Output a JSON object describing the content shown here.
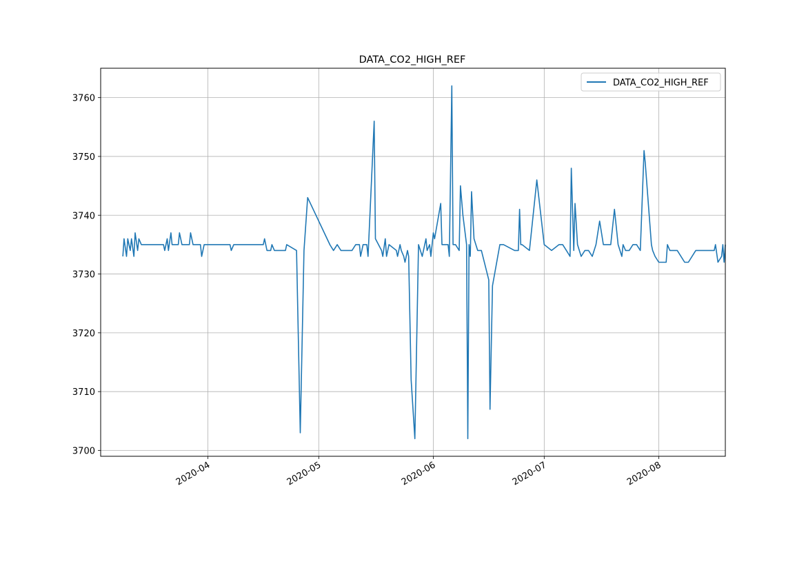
{
  "chart_data": {
    "type": "line",
    "title": "DATA_CO2_HIGH_REF",
    "xlabel": "",
    "ylabel": "",
    "x_axis_type": "date",
    "xlim": [
      "2020-03-03",
      "2020-08-19"
    ],
    "ylim": [
      3699,
      3765
    ],
    "x_ticks": [
      "2020-04",
      "2020-05",
      "2020-06",
      "2020-07",
      "2020-08"
    ],
    "y_ticks": [
      3700,
      3710,
      3720,
      3730,
      3740,
      3750,
      3760
    ],
    "grid": true,
    "legend_position": "top-right",
    "line_color": "#1f77b4",
    "series": [
      {
        "name": "DATA_CO2_HIGH_REF",
        "points": [
          [
            "2020-03-09",
            3733
          ],
          [
            "2020-03-09",
            3736
          ],
          [
            "2020-03-10",
            3733
          ],
          [
            "2020-03-10",
            3736
          ],
          [
            "2020-03-11",
            3734
          ],
          [
            "2020-03-11",
            3736
          ],
          [
            "2020-03-12",
            3733
          ],
          [
            "2020-03-12",
            3737
          ],
          [
            "2020-03-13",
            3734
          ],
          [
            "2020-03-13",
            3736
          ],
          [
            "2020-03-14",
            3735
          ],
          [
            "2020-03-20",
            3735
          ],
          [
            "2020-03-20",
            3734
          ],
          [
            "2020-03-21",
            3736
          ],
          [
            "2020-03-21",
            3734
          ],
          [
            "2020-03-22",
            3737
          ],
          [
            "2020-03-22",
            3735
          ],
          [
            "2020-03-24",
            3735
          ],
          [
            "2020-03-24",
            3737
          ],
          [
            "2020-03-25",
            3735
          ],
          [
            "2020-03-27",
            3735
          ],
          [
            "2020-03-27",
            3737
          ],
          [
            "2020-03-28",
            3735
          ],
          [
            "2020-03-30",
            3735
          ],
          [
            "2020-03-30",
            3733
          ],
          [
            "2020-03-31",
            3735
          ],
          [
            "2020-04-07",
            3735
          ],
          [
            "2020-04-07",
            3734
          ],
          [
            "2020-04-08",
            3735
          ],
          [
            "2020-04-16",
            3735
          ],
          [
            "2020-04-16",
            3736
          ],
          [
            "2020-04-17",
            3734
          ],
          [
            "2020-04-18",
            3734
          ],
          [
            "2020-04-18",
            3735
          ],
          [
            "2020-04-19",
            3734
          ],
          [
            "2020-04-22",
            3734
          ],
          [
            "2020-04-22",
            3735
          ],
          [
            "2020-04-25",
            3734
          ],
          [
            "2020-04-26",
            3703
          ],
          [
            "2020-04-27",
            3734
          ],
          [
            "2020-04-28",
            3743
          ],
          [
            "2020-05-04",
            3735
          ],
          [
            "2020-05-05",
            3734
          ],
          [
            "2020-05-06",
            3735
          ],
          [
            "2020-05-07",
            3734
          ],
          [
            "2020-05-10",
            3734
          ],
          [
            "2020-05-11",
            3735
          ],
          [
            "2020-05-12",
            3735
          ],
          [
            "2020-05-12",
            3733
          ],
          [
            "2020-05-13",
            3735
          ],
          [
            "2020-05-14",
            3735
          ],
          [
            "2020-05-14",
            3733
          ],
          [
            "2020-05-15",
            3742
          ],
          [
            "2020-05-16",
            3756
          ],
          [
            "2020-05-16",
            3736
          ],
          [
            "2020-05-18",
            3734
          ],
          [
            "2020-05-18",
            3733
          ],
          [
            "2020-05-19",
            3736
          ],
          [
            "2020-05-19",
            3733
          ],
          [
            "2020-05-20",
            3735
          ],
          [
            "2020-05-22",
            3734
          ],
          [
            "2020-05-22",
            3733
          ],
          [
            "2020-05-23",
            3735
          ],
          [
            "2020-05-23",
            3734
          ],
          [
            "2020-05-24",
            3733
          ],
          [
            "2020-05-24",
            3732
          ],
          [
            "2020-05-25",
            3734
          ],
          [
            "2020-05-25",
            3733
          ],
          [
            "2020-05-26",
            3712
          ],
          [
            "2020-05-27",
            3702
          ],
          [
            "2020-05-28",
            3735
          ],
          [
            "2020-05-29",
            3733
          ],
          [
            "2020-05-30",
            3736
          ],
          [
            "2020-05-30",
            3734
          ],
          [
            "2020-05-31",
            3735
          ],
          [
            "2020-05-31",
            3733
          ],
          [
            "2020-06-01",
            3737
          ],
          [
            "2020-06-01",
            3736
          ],
          [
            "2020-06-03",
            3742
          ],
          [
            "2020-06-03",
            3735
          ],
          [
            "2020-06-05",
            3735
          ],
          [
            "2020-06-05",
            3733
          ],
          [
            "2020-06-06",
            3762
          ],
          [
            "2020-06-06",
            3735
          ],
          [
            "2020-06-07",
            3735
          ],
          [
            "2020-06-08",
            3734
          ],
          [
            "2020-06-08",
            3745
          ],
          [
            "2020-06-09",
            3740
          ],
          [
            "2020-06-10",
            3735
          ],
          [
            "2020-06-10",
            3702
          ],
          [
            "2020-06-10",
            3735
          ],
          [
            "2020-06-11",
            3733
          ],
          [
            "2020-06-11",
            3744
          ],
          [
            "2020-06-12",
            3736
          ],
          [
            "2020-06-13",
            3734
          ],
          [
            "2020-06-14",
            3734
          ],
          [
            "2020-06-16",
            3729
          ],
          [
            "2020-06-16",
            3707
          ],
          [
            "2020-06-17",
            3728
          ],
          [
            "2020-06-19",
            3735
          ],
          [
            "2020-06-20",
            3735
          ],
          [
            "2020-06-23",
            3734
          ],
          [
            "2020-06-24",
            3734
          ],
          [
            "2020-06-24",
            3741
          ],
          [
            "2020-06-24",
            3735
          ],
          [
            "2020-06-25",
            3735
          ],
          [
            "2020-06-27",
            3734
          ],
          [
            "2020-06-29",
            3746
          ],
          [
            "2020-07-01",
            3735
          ],
          [
            "2020-07-03",
            3734
          ],
          [
            "2020-07-05",
            3735
          ],
          [
            "2020-07-06",
            3735
          ],
          [
            "2020-07-07",
            3734
          ],
          [
            "2020-07-08",
            3733
          ],
          [
            "2020-07-08",
            3748
          ],
          [
            "2020-07-09",
            3734
          ],
          [
            "2020-07-09",
            3742
          ],
          [
            "2020-07-10",
            3735
          ],
          [
            "2020-07-11",
            3733
          ],
          [
            "2020-07-12",
            3734
          ],
          [
            "2020-07-13",
            3734
          ],
          [
            "2020-07-14",
            3733
          ],
          [
            "2020-07-15",
            3735
          ],
          [
            "2020-07-16",
            3739
          ],
          [
            "2020-07-17",
            3735
          ],
          [
            "2020-07-18",
            3735
          ],
          [
            "2020-07-19",
            3735
          ],
          [
            "2020-07-20",
            3741
          ],
          [
            "2020-07-21",
            3735
          ],
          [
            "2020-07-22",
            3733
          ],
          [
            "2020-07-22",
            3735
          ],
          [
            "2020-07-23",
            3734
          ],
          [
            "2020-07-24",
            3734
          ],
          [
            "2020-07-25",
            3735
          ],
          [
            "2020-07-26",
            3735
          ],
          [
            "2020-07-27",
            3734
          ],
          [
            "2020-07-28",
            3751
          ],
          [
            "2020-07-28",
            3749
          ],
          [
            "2020-07-30",
            3735
          ],
          [
            "2020-07-30",
            3734
          ],
          [
            "2020-07-31",
            3733
          ],
          [
            "2020-08-01",
            3732
          ],
          [
            "2020-08-03",
            3732
          ],
          [
            "2020-08-03",
            3735
          ],
          [
            "2020-08-04",
            3734
          ],
          [
            "2020-08-06",
            3734
          ],
          [
            "2020-08-08",
            3732
          ],
          [
            "2020-08-09",
            3732
          ],
          [
            "2020-08-11",
            3734
          ],
          [
            "2020-08-16",
            3734
          ],
          [
            "2020-08-16",
            3735
          ],
          [
            "2020-08-17",
            3732
          ],
          [
            "2020-08-18",
            3733
          ],
          [
            "2020-08-18",
            3735
          ],
          [
            "2020-08-18",
            3732
          ],
          [
            "2020-08-19",
            3735
          ]
        ]
      }
    ]
  }
}
